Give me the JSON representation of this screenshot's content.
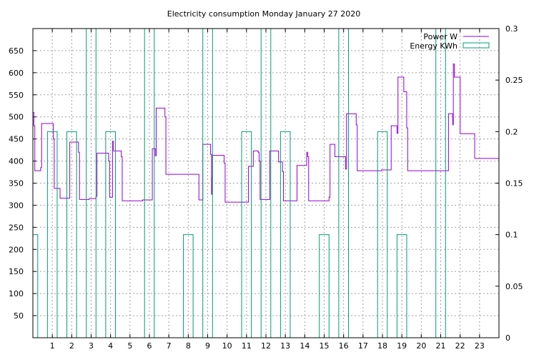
{
  "chart_data": {
    "type": "line",
    "title": "Electricity consumption Monday January 27 2020",
    "xlabel": "",
    "ylabel": "",
    "xlim": [
      0,
      24
    ],
    "ylim": [
      0,
      700
    ],
    "y2lim": [
      0,
      0.3
    ],
    "x_ticks": [
      "1",
      "2",
      "3",
      "4",
      "5",
      "6",
      "7",
      "8",
      "9",
      "10",
      "11",
      "12",
      "13",
      "14",
      "15",
      "16",
      "17",
      "18",
      "19",
      "20",
      "21",
      "22",
      "23"
    ],
    "y_ticks": [
      "50",
      "100",
      "150",
      "200",
      "250",
      "300",
      "350",
      "400",
      "450",
      "500",
      "550",
      "600",
      "650"
    ],
    "y2_ticks": [
      "0",
      "0.05",
      "0.1",
      "0.15",
      "0.2",
      "0.25",
      "0.3"
    ],
    "grid": true,
    "legend": "top-right",
    "colors": {
      "power": "#9400d3",
      "energy": "#009e73"
    },
    "series": [
      {
        "name": "Power W",
        "axis": "left",
        "style": "step",
        "points": [
          [
            0.0,
            510
          ],
          [
            0.05,
            480
          ],
          [
            0.1,
            378
          ],
          [
            0.35,
            378
          ],
          [
            0.4,
            385
          ],
          [
            0.45,
            485
          ],
          [
            1.0,
            485
          ],
          [
            1.05,
            450
          ],
          [
            1.1,
            338
          ],
          [
            1.3,
            338
          ],
          [
            1.4,
            316
          ],
          [
            1.85,
            316
          ],
          [
            1.9,
            443
          ],
          [
            2.3,
            443
          ],
          [
            2.35,
            420
          ],
          [
            2.4,
            313
          ],
          [
            2.85,
            313
          ],
          [
            2.9,
            315
          ],
          [
            3.2,
            315
          ],
          [
            3.25,
            320
          ],
          [
            3.3,
            418
          ],
          [
            3.85,
            418
          ],
          [
            3.9,
            400
          ],
          [
            3.95,
            318
          ],
          [
            4.05,
            318
          ],
          [
            4.1,
            445
          ],
          [
            4.15,
            423
          ],
          [
            4.5,
            423
          ],
          [
            4.55,
            410
          ],
          [
            4.6,
            310
          ],
          [
            5.6,
            310
          ],
          [
            5.65,
            312
          ],
          [
            6.1,
            312
          ],
          [
            6.15,
            428
          ],
          [
            6.3,
            412
          ],
          [
            6.35,
            520
          ],
          [
            6.75,
            520
          ],
          [
            6.8,
            500
          ],
          [
            6.85,
            370
          ],
          [
            8.5,
            370
          ],
          [
            8.55,
            312
          ],
          [
            8.7,
            312
          ],
          [
            8.75,
            438
          ],
          [
            9.1,
            438
          ],
          [
            9.15,
            415
          ],
          [
            9.2,
            325
          ],
          [
            9.22,
            362
          ],
          [
            9.25,
            413
          ],
          [
            9.8,
            413
          ],
          [
            9.85,
            395
          ],
          [
            9.9,
            307
          ],
          [
            11.05,
            307
          ],
          [
            11.1,
            388
          ],
          [
            11.3,
            388
          ],
          [
            11.35,
            423
          ],
          [
            11.6,
            420
          ],
          [
            11.65,
            400
          ],
          [
            11.7,
            313
          ],
          [
            12.15,
            313
          ],
          [
            12.2,
            423
          ],
          [
            12.6,
            423
          ],
          [
            12.65,
            398
          ],
          [
            12.8,
            398
          ],
          [
            12.85,
            376
          ],
          [
            12.9,
            310
          ],
          [
            13.55,
            310
          ],
          [
            13.6,
            390
          ],
          [
            14.05,
            390
          ],
          [
            14.1,
            420
          ],
          [
            14.15,
            410
          ],
          [
            14.2,
            310
          ],
          [
            15.2,
            310
          ],
          [
            15.25,
            318
          ],
          [
            15.3,
            438
          ],
          [
            15.5,
            438
          ],
          [
            15.55,
            410
          ],
          [
            16.05,
            410
          ],
          [
            16.1,
            382
          ],
          [
            16.15,
            507
          ],
          [
            16.6,
            507
          ],
          [
            16.65,
            482
          ],
          [
            16.7,
            378
          ],
          [
            17.9,
            378
          ],
          [
            17.95,
            380
          ],
          [
            18.4,
            380
          ],
          [
            18.45,
            480
          ],
          [
            18.7,
            480
          ],
          [
            18.75,
            463
          ],
          [
            18.8,
            590
          ],
          [
            19.05,
            590
          ],
          [
            19.1,
            557
          ],
          [
            19.2,
            557
          ],
          [
            19.25,
            475
          ],
          [
            19.3,
            378
          ],
          [
            21.35,
            378
          ],
          [
            21.4,
            507
          ],
          [
            21.6,
            507
          ],
          [
            21.62,
            482
          ],
          [
            21.65,
            620
          ],
          [
            21.7,
            590
          ],
          [
            21.95,
            590
          ],
          [
            22.0,
            462
          ],
          [
            22.7,
            462
          ],
          [
            22.75,
            406
          ],
          [
            24.0,
            406
          ],
          [
            24.0,
            378
          ]
        ]
      },
      {
        "name": "Energy KWh",
        "axis": "right",
        "style": "step",
        "points": [
          [
            0.0,
            0.1
          ],
          [
            0.25,
            0.1
          ],
          [
            0.25,
            0
          ],
          [
            0.75,
            0
          ],
          [
            0.75,
            0.2
          ],
          [
            1.25,
            0.2
          ],
          [
            1.25,
            0
          ],
          [
            1.75,
            0
          ],
          [
            1.75,
            0.2
          ],
          [
            2.25,
            0.2
          ],
          [
            2.25,
            0
          ],
          [
            2.75,
            0
          ],
          [
            2.75,
            0.3
          ],
          [
            3.25,
            0.3
          ],
          [
            3.25,
            0
          ],
          [
            3.75,
            0
          ],
          [
            3.75,
            0.2
          ],
          [
            4.25,
            0.2
          ],
          [
            4.25,
            0
          ],
          [
            5.75,
            0
          ],
          [
            5.75,
            0.3
          ],
          [
            6.25,
            0.3
          ],
          [
            6.25,
            0
          ],
          [
            7.75,
            0
          ],
          [
            7.75,
            0.1
          ],
          [
            8.25,
            0.1
          ],
          [
            8.25,
            0
          ],
          [
            8.75,
            0
          ],
          [
            8.75,
            0.3
          ],
          [
            9.25,
            0.3
          ],
          [
            9.25,
            0
          ],
          [
            10.75,
            0
          ],
          [
            10.75,
            0.2
          ],
          [
            11.25,
            0.2
          ],
          [
            11.25,
            0
          ],
          [
            11.75,
            0
          ],
          [
            11.75,
            0.3
          ],
          [
            12.25,
            0.3
          ],
          [
            12.25,
            0
          ],
          [
            12.75,
            0
          ],
          [
            12.75,
            0.2
          ],
          [
            13.25,
            0.2
          ],
          [
            13.25,
            0
          ],
          [
            14.75,
            0
          ],
          [
            14.75,
            0.1
          ],
          [
            15.25,
            0.1
          ],
          [
            15.25,
            0
          ],
          [
            15.75,
            0
          ],
          [
            15.75,
            0.3
          ],
          [
            16.25,
            0.3
          ],
          [
            16.25,
            0
          ],
          [
            17.75,
            0
          ],
          [
            17.75,
            0.2
          ],
          [
            18.25,
            0.2
          ],
          [
            18.25,
            0
          ],
          [
            18.75,
            0
          ],
          [
            18.75,
            0.1
          ],
          [
            19.25,
            0.1
          ],
          [
            19.25,
            0
          ],
          [
            20.75,
            0
          ],
          [
            20.75,
            0.3
          ],
          [
            21.25,
            0.3
          ],
          [
            21.25,
            0
          ]
        ]
      }
    ]
  }
}
